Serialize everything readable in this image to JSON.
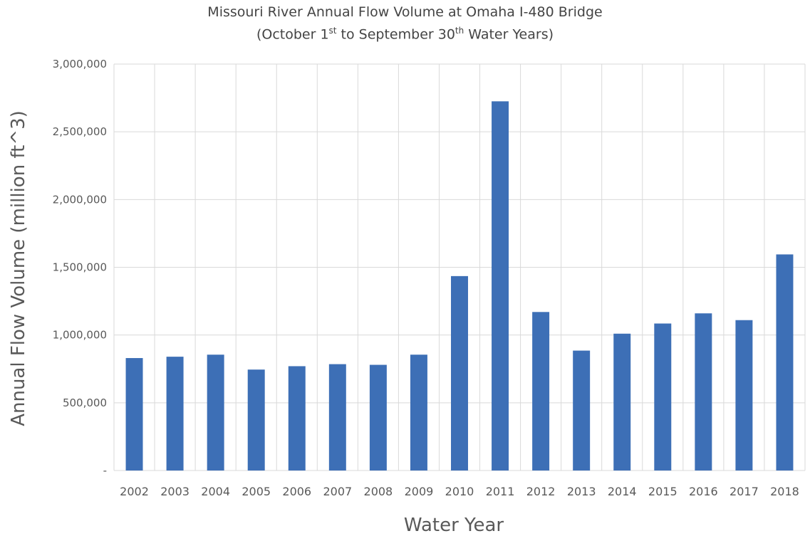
{
  "chart_data": {
    "type": "bar",
    "title": "Missouri River Annual Flow Volume at Omaha I-480 Bridge",
    "subtitle": {
      "prefix": "(October 1",
      "sup1": "st",
      "middle": " to September 30",
      "sup2": "th",
      "suffix": " Water Years)"
    },
    "xlabel": "Water Year",
    "ylabel": "Annual Flow Volume (million ft^3)",
    "ylim": [
      0,
      3000000
    ],
    "yticks": [
      0,
      500000,
      1000000,
      1500000,
      2000000,
      2500000,
      3000000
    ],
    "ytick_labels": [
      "-",
      "500,000",
      "1,000,000",
      "1,500,000",
      "2,000,000",
      "2,500,000",
      "3,000,000"
    ],
    "categories": [
      "2002",
      "2003",
      "2004",
      "2005",
      "2006",
      "2007",
      "2008",
      "2009",
      "2010",
      "2011",
      "2012",
      "2013",
      "2014",
      "2015",
      "2016",
      "2017",
      "2018"
    ],
    "series": [
      {
        "values": [
          830000,
          840000,
          855000,
          745000,
          770000,
          785000,
          780000,
          855000,
          1435000,
          2725000,
          1170000,
          885000,
          1010000,
          1085000,
          1160000,
          1110000,
          1595000
        ]
      }
    ],
    "colors": {
      "bar": "#3d6fb6",
      "grid": "#d9d9d9",
      "axis_text": "#595959",
      "title_text": "#444444"
    },
    "grid": true,
    "legend": "none"
  }
}
